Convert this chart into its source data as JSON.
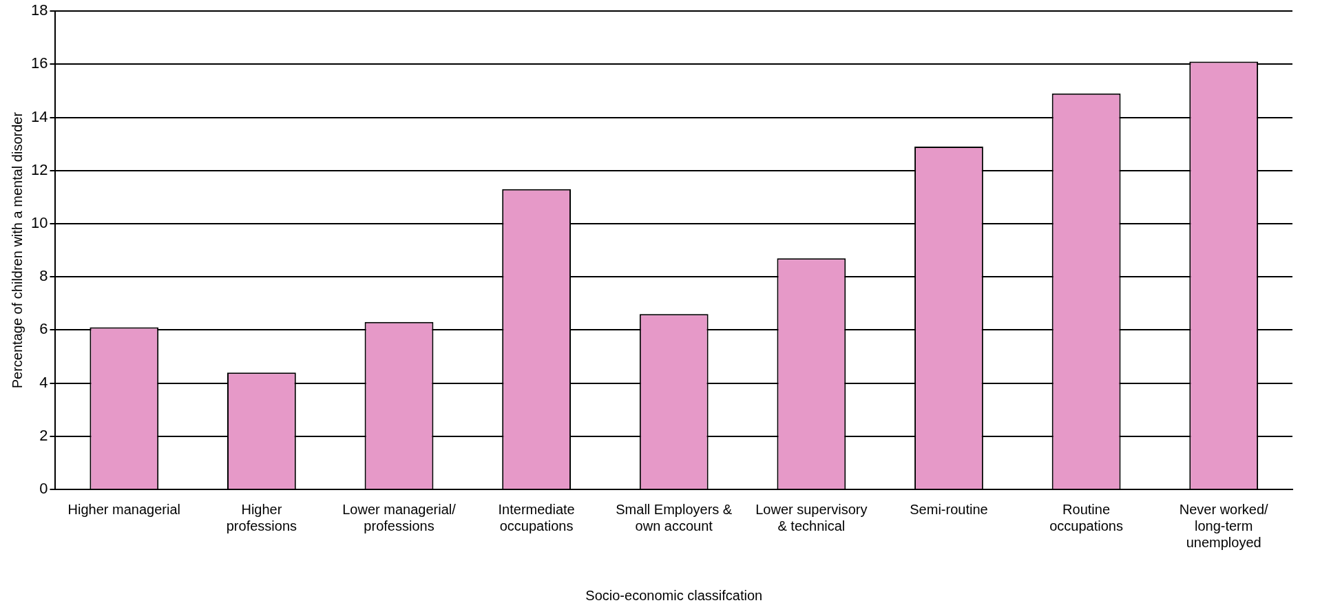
{
  "chart_data": {
    "type": "bar",
    "categories": [
      "Higher managerial",
      "Higher professions",
      "Lower managerial/ professions",
      "Intermediate occupations",
      "Small Employers & own account",
      "Lower supervisory & technical",
      "Semi-routine",
      "Routine occupations",
      "Never worked/ long-term unemployed"
    ],
    "values": [
      6.1,
      4.4,
      6.3,
      11.3,
      6.6,
      8.7,
      12.9,
      14.9,
      16.1
    ],
    "color": "#e699c8",
    "xlabel": "Socio-economic classifcation",
    "ylabel": "Percentage of children with a mental disorder",
    "ylim": [
      0,
      18
    ],
    "yticks": [
      0,
      2,
      4,
      6,
      8,
      10,
      12,
      14,
      16,
      18
    ],
    "grid": "y",
    "legend": false
  }
}
